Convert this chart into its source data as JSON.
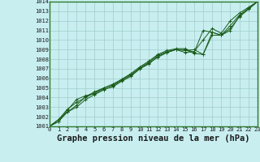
{
  "title": "Graphe pression niveau de la mer (hPa)",
  "bg_color": "#c8eef0",
  "grid_color": "#a0cccc",
  "line_color": "#1a5c1a",
  "border_color": "#2d7a2d",
  "ylim": [
    1001,
    1014
  ],
  "xlim": [
    0,
    23
  ],
  "yticks": [
    1001,
    1002,
    1003,
    1004,
    1005,
    1006,
    1007,
    1008,
    1009,
    1010,
    1011,
    1012,
    1013,
    1014
  ],
  "xticks": [
    0,
    1,
    2,
    3,
    4,
    5,
    6,
    7,
    8,
    9,
    10,
    11,
    12,
    13,
    14,
    15,
    16,
    17,
    18,
    19,
    20,
    21,
    22,
    23
  ],
  "series": [
    [
      1001.0,
      1001.7,
      1002.5,
      1003.0,
      1003.8,
      1004.3,
      1004.8,
      1005.2,
      1005.8,
      1006.3,
      1007.0,
      1007.6,
      1008.2,
      1008.7,
      1009.0,
      1009.0,
      1008.6,
      1008.5,
      1010.8,
      1010.5,
      1011.2,
      1012.4,
      1013.2,
      1014.0
    ],
    [
      1001.0,
      1001.7,
      1002.8,
      1003.5,
      1004.0,
      1004.5,
      1005.0,
      1005.3,
      1005.9,
      1006.5,
      1007.2,
      1007.8,
      1008.5,
      1008.9,
      1009.1,
      1009.1,
      1008.7,
      1011.0,
      1010.8,
      1010.5,
      1011.5,
      1012.6,
      1013.3,
      1014.0
    ],
    [
      1001.0,
      1001.5,
      1002.5,
      1003.2,
      1004.1,
      1004.6,
      1005.0,
      1005.4,
      1005.9,
      1006.4,
      1007.1,
      1007.7,
      1008.4,
      1008.8,
      1009.0,
      1008.9,
      1009.0,
      1008.5,
      1010.5,
      1010.5,
      1011.0,
      1012.5,
      1013.2,
      1014.0
    ],
    [
      1001.0,
      1001.5,
      1002.7,
      1003.8,
      1004.2,
      1004.4,
      1004.9,
      1005.1,
      1005.7,
      1006.2,
      1007.0,
      1007.5,
      1008.3,
      1008.7,
      1009.0,
      1008.7,
      1008.8,
      1010.0,
      1011.2,
      1010.7,
      1012.0,
      1012.8,
      1013.4,
      1014.0
    ]
  ],
  "title_fontsize": 7.5,
  "tick_fontsize": 5.0
}
